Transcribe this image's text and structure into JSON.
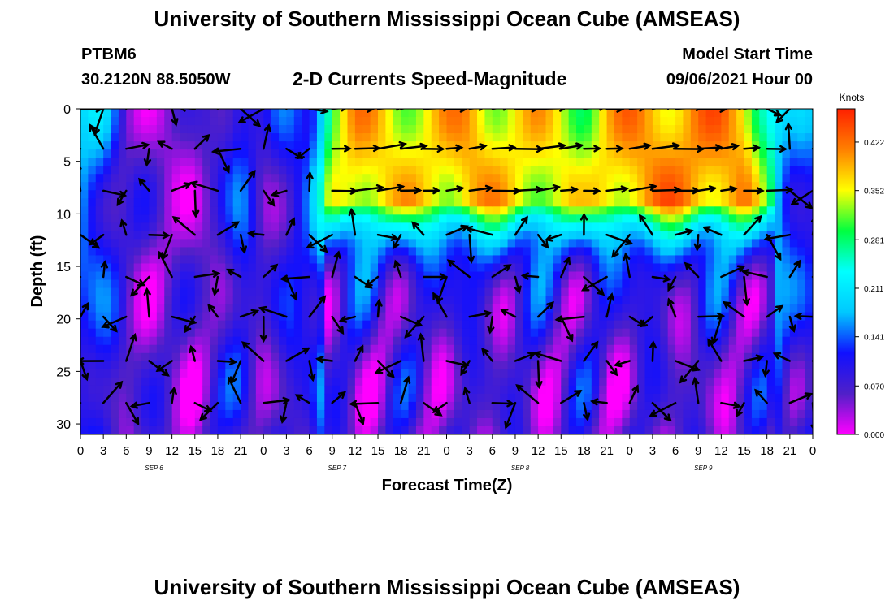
{
  "header": {
    "title": "University of Southern Mississippi Ocean Cube (AMSEAS)",
    "station": "PTBM6",
    "coords": "30.2120N  88.5050W",
    "subtitle": "2-D Currents Speed-Magnitude",
    "model_start_label": "Model Start Time",
    "model_start_value": "09/06/2021 Hour 00"
  },
  "footer": {
    "title": "University of Southern Mississippi Ocean Cube (AMSEAS)"
  },
  "colors": {
    "palette": [
      "#ff00ff",
      "#5020c8",
      "#1010ff",
      "#00c8ff",
      "#00ffff",
      "#00ff40",
      "#ffff00",
      "#ff8000",
      "#ff2000"
    ],
    "arrow": "#000000"
  },
  "chart_data": {
    "type": "heatmap",
    "title": "2-D Currents Speed-Magnitude",
    "xlabel": "Forecast Time(Z)",
    "ylabel": "Depth (ft)",
    "colorbar_label": "Knots",
    "x_tick_labels": [
      "0",
      "3",
      "6",
      "9",
      "12",
      "15",
      "18",
      "21",
      "0",
      "3",
      "6",
      "9",
      "12",
      "15",
      "18",
      "21",
      "0",
      "3",
      "6",
      "9",
      "12",
      "15",
      "18",
      "21",
      "0",
      "3",
      "6",
      "9",
      "12",
      "15",
      "18",
      "21",
      "0"
    ],
    "day_labels": [
      {
        "label": "SEP 6",
        "hour": 9
      },
      {
        "label": "SEP 7",
        "hour": 33
      },
      {
        "label": "SEP 8",
        "hour": 57
      },
      {
        "label": "SEP 9",
        "hour": 81
      }
    ],
    "x_range": [
      0,
      96
    ],
    "y_ticks": [
      0,
      5,
      10,
      15,
      20,
      25,
      30
    ],
    "y_range": [
      0,
      31
    ],
    "colorbar_ticks": [
      "0.000",
      "0.070",
      "0.141",
      "0.211",
      "0.281",
      "0.352",
      "0.422"
    ],
    "colorbar_range": [
      0,
      0.47
    ],
    "arrow_depths": [
      0,
      3.8,
      7.8,
      12,
      16,
      19.8,
      24,
      28
    ],
    "surface_speed_by_hour": [
      [
        0,
        0.19
      ],
      [
        3,
        0.17
      ],
      [
        6,
        0.06
      ],
      [
        9,
        0.05
      ],
      [
        12,
        0.04
      ],
      [
        15,
        0.03
      ],
      [
        18,
        0.08
      ],
      [
        21,
        0.15
      ],
      [
        24,
        0.06
      ],
      [
        27,
        0.12
      ],
      [
        30,
        0.14
      ],
      [
        33,
        0.33
      ],
      [
        36,
        0.38
      ],
      [
        39,
        0.37
      ],
      [
        42,
        0.36
      ],
      [
        45,
        0.36
      ],
      [
        48,
        0.37
      ],
      [
        51,
        0.39
      ],
      [
        54,
        0.37
      ],
      [
        57,
        0.36
      ],
      [
        60,
        0.36
      ],
      [
        63,
        0.35
      ],
      [
        66,
        0.33
      ],
      [
        69,
        0.37
      ],
      [
        72,
        0.39
      ],
      [
        75,
        0.4
      ],
      [
        78,
        0.4
      ],
      [
        81,
        0.4
      ],
      [
        84,
        0.4
      ],
      [
        87,
        0.39
      ],
      [
        90,
        0.28
      ],
      [
        93,
        0.15
      ],
      [
        96,
        0.15
      ]
    ]
  }
}
